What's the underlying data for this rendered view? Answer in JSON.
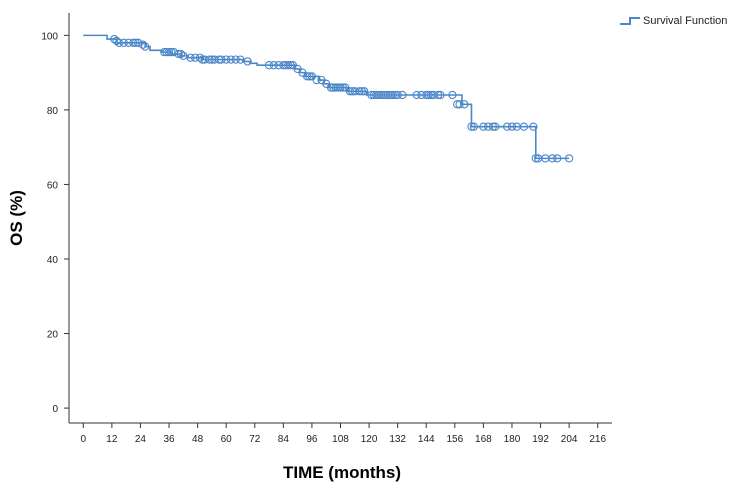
{
  "chart_data": {
    "type": "line",
    "subtype": "kaplan-meier",
    "xlabel": "TIME (months)",
    "ylabel": "OS (%)",
    "xlim": [
      -6,
      222
    ],
    "ylim": [
      -4,
      106
    ],
    "x_ticks": [
      0,
      12,
      24,
      36,
      48,
      60,
      72,
      84,
      96,
      108,
      120,
      132,
      144,
      156,
      168,
      180,
      192,
      204,
      216
    ],
    "y_ticks": [
      0,
      20,
      40,
      60,
      80,
      100
    ],
    "series": [
      {
        "name": "Survival Function",
        "color": "#4a86c8",
        "steps": [
          {
            "x": 0,
            "y": 100
          },
          {
            "x": 10,
            "y": 99
          },
          {
            "x": 14,
            "y": 98
          },
          {
            "x": 26,
            "y": 97
          },
          {
            "x": 28,
            "y": 96
          },
          {
            "x": 33,
            "y": 95.5
          },
          {
            "x": 37,
            "y": 95
          },
          {
            "x": 41,
            "y": 94.5
          },
          {
            "x": 44,
            "y": 94
          },
          {
            "x": 50,
            "y": 93.5
          },
          {
            "x": 67,
            "y": 93
          },
          {
            "x": 70,
            "y": 92.5
          },
          {
            "x": 73,
            "y": 92
          },
          {
            "x": 89,
            "y": 91
          },
          {
            "x": 91,
            "y": 90
          },
          {
            "x": 93,
            "y": 89
          },
          {
            "x": 99,
            "y": 88
          },
          {
            "x": 101,
            "y": 87
          },
          {
            "x": 103,
            "y": 86
          },
          {
            "x": 111,
            "y": 85
          },
          {
            "x": 119,
            "y": 84
          },
          {
            "x": 159,
            "y": 81.5
          },
          {
            "x": 163,
            "y": 75.5
          },
          {
            "x": 190,
            "y": 67
          }
        ],
        "end_x": 204,
        "censored": [
          {
            "x": 13,
            "y": 99
          },
          {
            "x": 14,
            "y": 98.5
          },
          {
            "x": 15,
            "y": 98
          },
          {
            "x": 17,
            "y": 98
          },
          {
            "x": 19,
            "y": 98
          },
          {
            "x": 21,
            "y": 98
          },
          {
            "x": 22,
            "y": 98
          },
          {
            "x": 23,
            "y": 98
          },
          {
            "x": 25,
            "y": 97.5
          },
          {
            "x": 26,
            "y": 97
          },
          {
            "x": 34,
            "y": 95.5
          },
          {
            "x": 35,
            "y": 95.5
          },
          {
            "x": 36,
            "y": 95.5
          },
          {
            "x": 37,
            "y": 95.5
          },
          {
            "x": 38,
            "y": 95.5
          },
          {
            "x": 40,
            "y": 95
          },
          {
            "x": 41,
            "y": 95
          },
          {
            "x": 42,
            "y": 94.5
          },
          {
            "x": 45,
            "y": 94
          },
          {
            "x": 47,
            "y": 94
          },
          {
            "x": 49,
            "y": 94
          },
          {
            "x": 50,
            "y": 93.5
          },
          {
            "x": 51,
            "y": 93.5
          },
          {
            "x": 53,
            "y": 93.5
          },
          {
            "x": 54,
            "y": 93.5
          },
          {
            "x": 55,
            "y": 93.5
          },
          {
            "x": 57,
            "y": 93.5
          },
          {
            "x": 58,
            "y": 93.5
          },
          {
            "x": 60,
            "y": 93.5
          },
          {
            "x": 62,
            "y": 93.5
          },
          {
            "x": 64,
            "y": 93.5
          },
          {
            "x": 66,
            "y": 93.5
          },
          {
            "x": 69,
            "y": 93
          },
          {
            "x": 78,
            "y": 92
          },
          {
            "x": 80,
            "y": 92
          },
          {
            "x": 82,
            "y": 92
          },
          {
            "x": 84,
            "y": 92
          },
          {
            "x": 85,
            "y": 92
          },
          {
            "x": 86,
            "y": 92
          },
          {
            "x": 87,
            "y": 92
          },
          {
            "x": 88,
            "y": 92
          },
          {
            "x": 90,
            "y": 91
          },
          {
            "x": 92,
            "y": 90
          },
          {
            "x": 94,
            "y": 89
          },
          {
            "x": 95,
            "y": 89
          },
          {
            "x": 96,
            "y": 89
          },
          {
            "x": 98,
            "y": 88
          },
          {
            "x": 100,
            "y": 88
          },
          {
            "x": 102,
            "y": 87
          },
          {
            "x": 104,
            "y": 86
          },
          {
            "x": 105,
            "y": 86
          },
          {
            "x": 106,
            "y": 86
          },
          {
            "x": 107,
            "y": 86
          },
          {
            "x": 108,
            "y": 86
          },
          {
            "x": 109,
            "y": 86
          },
          {
            "x": 110,
            "y": 86
          },
          {
            "x": 112,
            "y": 85
          },
          {
            "x": 113,
            "y": 85
          },
          {
            "x": 114,
            "y": 85
          },
          {
            "x": 116,
            "y": 85
          },
          {
            "x": 117,
            "y": 85
          },
          {
            "x": 118,
            "y": 85
          },
          {
            "x": 121,
            "y": 84
          },
          {
            "x": 122,
            "y": 84
          },
          {
            "x": 123,
            "y": 84
          },
          {
            "x": 124,
            "y": 84
          },
          {
            "x": 125,
            "y": 84
          },
          {
            "x": 126,
            "y": 84
          },
          {
            "x": 127,
            "y": 84
          },
          {
            "x": 128,
            "y": 84
          },
          {
            "x": 129,
            "y": 84
          },
          {
            "x": 130,
            "y": 84
          },
          {
            "x": 131,
            "y": 84
          },
          {
            "x": 132,
            "y": 84
          },
          {
            "x": 134,
            "y": 84
          },
          {
            "x": 140,
            "y": 84
          },
          {
            "x": 142,
            "y": 84
          },
          {
            "x": 144,
            "y": 84
          },
          {
            "x": 145,
            "y": 84
          },
          {
            "x": 146,
            "y": 84
          },
          {
            "x": 147,
            "y": 84
          },
          {
            "x": 149,
            "y": 84
          },
          {
            "x": 150,
            "y": 84
          },
          {
            "x": 155,
            "y": 84
          },
          {
            "x": 157,
            "y": 81.5
          },
          {
            "x": 158,
            "y": 81.5
          },
          {
            "x": 160,
            "y": 81.5
          },
          {
            "x": 163,
            "y": 75.5
          },
          {
            "x": 164,
            "y": 75.5
          },
          {
            "x": 168,
            "y": 75.5
          },
          {
            "x": 170,
            "y": 75.5
          },
          {
            "x": 172,
            "y": 75.5
          },
          {
            "x": 173,
            "y": 75.5
          },
          {
            "x": 178,
            "y": 75.5
          },
          {
            "x": 180,
            "y": 75.5
          },
          {
            "x": 182,
            "y": 75.5
          },
          {
            "x": 185,
            "y": 75.5
          },
          {
            "x": 189,
            "y": 75.5
          },
          {
            "x": 190,
            "y": 67
          },
          {
            "x": 191,
            "y": 67
          },
          {
            "x": 194,
            "y": 67
          },
          {
            "x": 197,
            "y": 67
          },
          {
            "x": 199,
            "y": 67
          },
          {
            "x": 204,
            "y": 67
          }
        ]
      }
    ],
    "legend": {
      "label": "Survival Function",
      "position": "top-right"
    }
  }
}
